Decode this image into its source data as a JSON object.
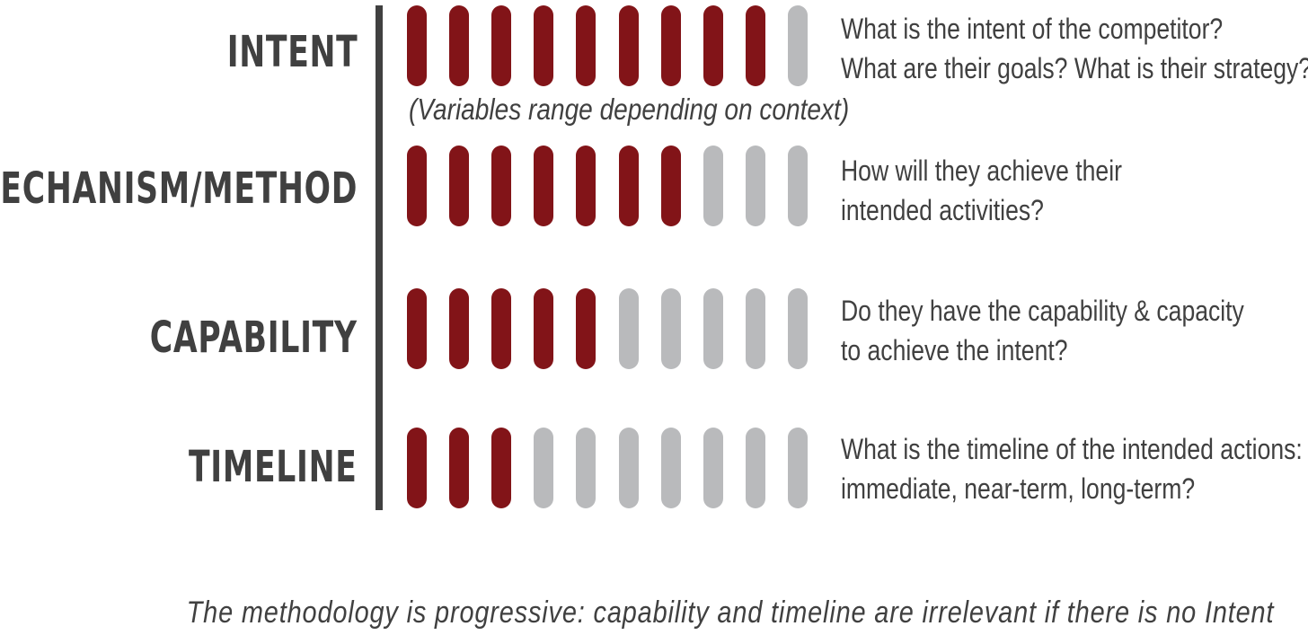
{
  "rows": [
    {
      "label": "INTENT",
      "filled": 9,
      "total": 10,
      "description_lines": [
        "What is the intent of the competitor?",
        "What are their goals? What is their strategy?"
      ]
    },
    {
      "label": "MECHANISM/METHOD",
      "filled": 7,
      "total": 10,
      "description_lines": [
        "How will they achieve their",
        "intended activities?"
      ]
    },
    {
      "label": "CAPABILITY",
      "filled": 5,
      "total": 10,
      "description_lines": [
        "Do they have the capability & capacity",
        "to achieve the intent?"
      ]
    },
    {
      "label": "TIMELINE",
      "filled": 3,
      "total": 10,
      "description_lines": [
        "What is the timeline of the intended actions:",
        "immediate, near-term, long-term?"
      ]
    }
  ],
  "note": "(Variables range depending on context)",
  "footer": "The methodology is progressive: capability and timeline are irrelevant if there is no Intent",
  "colors": {
    "filled": "#821418",
    "empty": "#b9babc",
    "text": "#404040"
  }
}
